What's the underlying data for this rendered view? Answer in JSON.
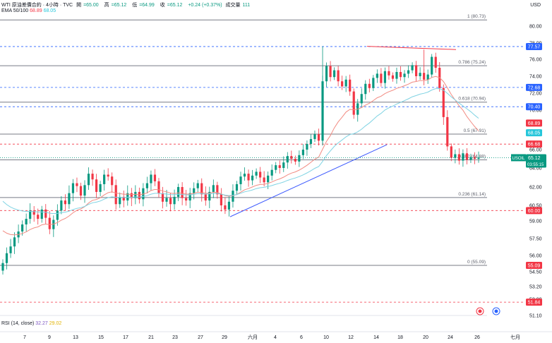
{
  "header": {
    "symbol": "WTI 原油差價合約 · 4小時 · TVC",
    "open_label": "開",
    "open": "=65.00",
    "high_label": "高",
    "high": "=65.12",
    "low_label": "低",
    "low": "=64.99",
    "close_label": "收",
    "close": "=65.12",
    "change": "+0.24 (+0.37%)",
    "volume_label": "成交量",
    "volume": "111",
    "ema_label": "EMA 50/100",
    "ema50": "68.89",
    "ema100": "68.05"
  },
  "rsi": {
    "label": "RSI (14, close)",
    "v1": "32.27",
    "v2": "29.02"
  },
  "currency": "USD",
  "colors": {
    "up": "#089981",
    "down": "#f23645",
    "ema50": "#f28b82",
    "ema100": "#7fd3e3",
    "trend": "#3d5afe",
    "fib": "#787b86"
  },
  "chart_data": {
    "type": "candlestick",
    "title": "",
    "x_tick_labels": [
      "7",
      "9",
      "13",
      "15",
      "17",
      "21",
      "23",
      "27",
      "29",
      "六月",
      "4",
      "6",
      "10",
      "12",
      "14",
      "18",
      "20",
      "24",
      "26",
      "七月"
    ],
    "y_tick_labels": [
      80.0,
      78.0,
      76.0,
      74.0,
      72.0,
      70.0,
      68.0,
      66.0,
      64.0,
      62.0,
      60.5,
      59.0,
      57.5,
      56.0,
      54.5,
      53.2,
      52.0,
      51.1
    ],
    "fibonacci": [
      {
        "label": "1 (80.73)",
        "value": 80.73
      },
      {
        "label": "0.786 (75.24)",
        "value": 75.24
      },
      {
        "label": "0.618 (70.94)",
        "value": 70.94
      },
      {
        "label": "0.5 (67.91)",
        "value": 67.91
      },
      {
        "label": "0.382 (64.88)",
        "value": 64.88
      },
      {
        "label": "0.236 (61.14)",
        "value": 61.14
      },
      {
        "label": "0 (55.09)",
        "value": 55.09
      }
    ],
    "price_tags": [
      {
        "label": "77.57",
        "value": 77.57,
        "color": "#2962ff"
      },
      {
        "label": "72.68",
        "value": 72.68,
        "color": "#2962ff"
      },
      {
        "label": "70.40",
        "value": 70.4,
        "color": "#2962ff"
      },
      {
        "label": "68.89",
        "value": 68.89,
        "color": "#f23645"
      },
      {
        "label": "68.05",
        "value": 68.05,
        "color": "#26c6da"
      },
      {
        "label": "66.68",
        "value": 66.68,
        "color": "#f23645"
      },
      {
        "label": "60.00",
        "value": 60.0,
        "color": "#f23645"
      },
      {
        "label": "55.09",
        "value": 55.09,
        "color": "#f23645"
      },
      {
        "label": "51.84",
        "value": 51.84,
        "color": "#f23645"
      }
    ],
    "last_price": {
      "symbol": "USOIL",
      "price": "65.12",
      "countdown": "03:55:15",
      "value": 65.12
    },
    "dashed_levels": [
      {
        "value": 77.57,
        "color": "#2962ff"
      },
      {
        "value": 72.68,
        "color": "#2962ff"
      },
      {
        "value": 70.4,
        "color": "#2962ff"
      },
      {
        "value": 66.68,
        "color": "#f23645"
      },
      {
        "value": 60.0,
        "color": "#f23645"
      },
      {
        "value": 51.84,
        "color": "#f23645"
      }
    ],
    "closes": [
      55.3,
      56.2,
      56.8,
      57.6,
      58.1,
      58.7,
      59.2,
      60.0,
      59.6,
      59.2,
      60.1,
      59.3,
      58.3,
      59.1,
      60.0,
      60.9,
      60.6,
      61.5,
      62.4,
      62.1,
      61.3,
      62.2,
      63.4,
      62.8,
      61.6,
      62.3,
      63.3,
      63.1,
      62.2,
      60.6,
      61.2,
      60.9,
      61.5,
      61.1,
      61.6,
      61.0,
      61.9,
      62.4,
      63.3,
      62.6,
      61.5,
      60.8,
      61.1,
      60.6,
      61.2,
      62.0,
      61.1,
      60.9,
      61.5,
      61.9,
      62.4,
      61.4,
      60.9,
      61.6,
      62.2,
      61.4,
      60.5,
      60.1,
      60.8,
      61.7,
      62.3,
      63.1,
      63.4,
      62.7,
      63.2,
      63.6,
      63.0,
      62.5,
      63.2,
      63.8,
      64.3,
      64.0,
      64.6,
      65.3,
      65.0,
      64.7,
      65.4,
      66.0,
      66.7,
      67.3,
      67.9,
      67.1,
      73.4,
      75.2,
      73.9,
      74.7,
      73.4,
      72.8,
      73.6,
      72.2,
      69.6,
      70.8,
      71.9,
      73.1,
      72.6,
      73.8,
      74.3,
      73.2,
      74.6,
      74.1,
      73.7,
      74.5,
      73.9,
      74.3,
      74.7,
      75.3,
      74.0,
      74.4,
      73.6,
      74.2,
      76.3,
      75.0,
      72.6,
      69.4,
      66.4,
      65.1,
      65.5,
      64.8,
      65.6,
      64.9,
      65.2,
      65.0,
      65.12
    ]
  }
}
